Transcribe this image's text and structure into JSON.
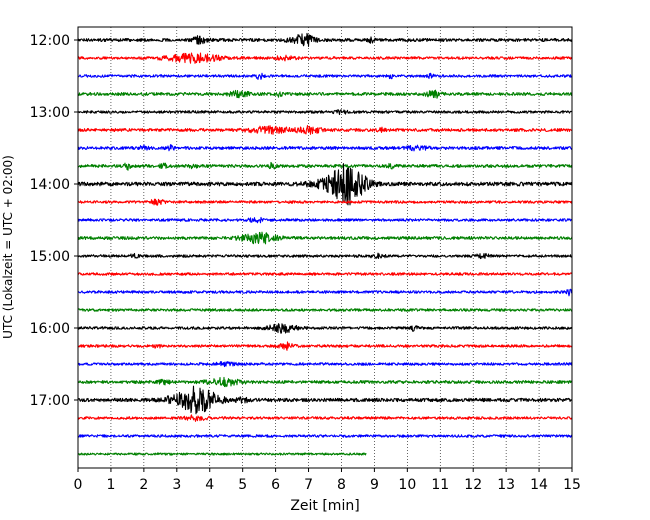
{
  "chart_data": {
    "type": "line",
    "title": "",
    "xlabel": "Zeit  [min]",
    "ylabel": "UTC (Lokalzeit = UTC + 02:00)",
    "xlim": [
      0,
      15
    ],
    "x_ticks": [
      0,
      1,
      2,
      3,
      4,
      5,
      6,
      7,
      8,
      9,
      10,
      11,
      12,
      13,
      14,
      15
    ],
    "y_tick_labels": [
      "12:00",
      "13:00",
      "14:00",
      "15:00",
      "16:00",
      "17:00"
    ],
    "grid": "vertical dotted",
    "trace_interval_minutes": 15,
    "colors": [
      "#000000",
      "#ff0000",
      "#0000ff",
      "#008000"
    ],
    "traces": [
      {
        "start": "12:00",
        "color": "#000000",
        "end_min": 15,
        "noise": 0.35,
        "events": [
          {
            "t": 3.7,
            "amp": 0.8,
            "dur": 0.2
          },
          {
            "t": 6.7,
            "amp": 0.9,
            "dur": 0.3
          },
          {
            "t": 7.0,
            "amp": 1.1,
            "dur": 0.2
          },
          {
            "t": 8.9,
            "amp": 0.5,
            "dur": 0.1
          }
        ]
      },
      {
        "start": "12:15",
        "color": "#ff0000",
        "end_min": 15,
        "noise": 0.3,
        "events": [
          {
            "t": 3.5,
            "amp": 1.0,
            "dur": 0.8
          },
          {
            "t": 6.3,
            "amp": 0.4,
            "dur": 0.3
          }
        ]
      },
      {
        "start": "12:30",
        "color": "#0000ff",
        "end_min": 15,
        "noise": 0.3,
        "events": [
          {
            "t": 5.5,
            "amp": 0.8,
            "dur": 0.1
          },
          {
            "t": 9.5,
            "amp": 0.4,
            "dur": 0.1
          },
          {
            "t": 10.7,
            "amp": 0.4,
            "dur": 0.1
          }
        ]
      },
      {
        "start": "12:45",
        "color": "#008000",
        "end_min": 15,
        "noise": 0.35,
        "events": [
          {
            "t": 4.9,
            "amp": 0.6,
            "dur": 0.3
          },
          {
            "t": 6.1,
            "amp": 0.5,
            "dur": 0.1
          },
          {
            "t": 10.8,
            "amp": 0.9,
            "dur": 0.2
          }
        ]
      },
      {
        "start": "13:00",
        "color": "#000000",
        "end_min": 15,
        "noise": 0.3,
        "events": [
          {
            "t": 8.0,
            "amp": 0.4,
            "dur": 0.2
          }
        ]
      },
      {
        "start": "13:15",
        "color": "#ff0000",
        "end_min": 15,
        "noise": 0.35,
        "events": [
          {
            "t": 5.8,
            "amp": 0.7,
            "dur": 0.6
          },
          {
            "t": 7.0,
            "amp": 0.7,
            "dur": 0.4
          },
          {
            "t": 9.2,
            "amp": 0.4,
            "dur": 0.1
          }
        ]
      },
      {
        "start": "13:30",
        "color": "#0000ff",
        "end_min": 15,
        "noise": 0.35,
        "events": [
          {
            "t": 2.0,
            "amp": 0.6,
            "dur": 0.1
          },
          {
            "t": 2.8,
            "amp": 0.6,
            "dur": 0.1
          },
          {
            "t": 10.3,
            "amp": 0.4,
            "dur": 0.3
          }
        ]
      },
      {
        "start": "13:45",
        "color": "#008000",
        "end_min": 15,
        "noise": 0.35,
        "events": [
          {
            "t": 1.5,
            "amp": 0.7,
            "dur": 0.1
          },
          {
            "t": 2.6,
            "amp": 0.6,
            "dur": 0.1
          },
          {
            "t": 3.5,
            "amp": 0.5,
            "dur": 0.1
          },
          {
            "t": 5.9,
            "amp": 0.6,
            "dur": 0.1
          },
          {
            "t": 9.5,
            "amp": 0.6,
            "dur": 0.1
          }
        ]
      },
      {
        "start": "14:00",
        "color": "#000000",
        "end_min": 15,
        "noise": 0.45,
        "events": [
          {
            "t": 8.2,
            "amp": 4.5,
            "dur": 0.5
          },
          {
            "t": 7.5,
            "amp": 0.6,
            "dur": 0.6
          }
        ]
      },
      {
        "start": "14:15",
        "color": "#ff0000",
        "end_min": 15,
        "noise": 0.3,
        "events": [
          {
            "t": 2.4,
            "amp": 0.5,
            "dur": 0.2
          }
        ]
      },
      {
        "start": "14:30",
        "color": "#0000ff",
        "end_min": 15,
        "noise": 0.3,
        "events": [
          {
            "t": 5.4,
            "amp": 0.6,
            "dur": 0.2
          }
        ]
      },
      {
        "start": "14:45",
        "color": "#008000",
        "end_min": 15,
        "noise": 0.35,
        "events": [
          {
            "t": 5.5,
            "amp": 1.3,
            "dur": 0.5
          }
        ]
      },
      {
        "start": "15:00",
        "color": "#000000",
        "end_min": 15,
        "noise": 0.3,
        "events": [
          {
            "t": 1.7,
            "amp": 0.6,
            "dur": 0.1
          },
          {
            "t": 9.1,
            "amp": 0.4,
            "dur": 0.2
          },
          {
            "t": 12.3,
            "amp": 0.4,
            "dur": 0.2
          }
        ]
      },
      {
        "start": "15:15",
        "color": "#ff0000",
        "end_min": 15,
        "noise": 0.3,
        "events": []
      },
      {
        "start": "15:30",
        "color": "#0000ff",
        "end_min": 15,
        "noise": 0.3,
        "events": [
          {
            "t": 14.95,
            "amp": 0.8,
            "dur": 0.1
          }
        ]
      },
      {
        "start": "15:45",
        "color": "#008000",
        "end_min": 15,
        "noise": 0.3,
        "events": []
      },
      {
        "start": "16:00",
        "color": "#000000",
        "end_min": 15,
        "noise": 0.3,
        "events": [
          {
            "t": 6.2,
            "amp": 1.0,
            "dur": 0.4
          },
          {
            "t": 10.2,
            "amp": 0.6,
            "dur": 0.1
          }
        ]
      },
      {
        "start": "16:15",
        "color": "#ff0000",
        "end_min": 15,
        "noise": 0.3,
        "events": [
          {
            "t": 2.4,
            "amp": 0.5,
            "dur": 0.1
          },
          {
            "t": 6.3,
            "amp": 0.8,
            "dur": 0.2
          }
        ]
      },
      {
        "start": "16:30",
        "color": "#0000ff",
        "end_min": 15,
        "noise": 0.3,
        "events": [
          {
            "t": 4.5,
            "amp": 0.4,
            "dur": 0.3
          }
        ]
      },
      {
        "start": "16:45",
        "color": "#008000",
        "end_min": 15,
        "noise": 0.35,
        "events": [
          {
            "t": 4.4,
            "amp": 0.8,
            "dur": 0.5
          },
          {
            "t": 2.6,
            "amp": 0.4,
            "dur": 0.2
          }
        ]
      },
      {
        "start": "17:00",
        "color": "#000000",
        "end_min": 15,
        "noise": 0.4,
        "events": [
          {
            "t": 3.6,
            "amp": 3.0,
            "dur": 0.6
          },
          {
            "t": 2.8,
            "amp": 0.4,
            "dur": 0.2
          },
          {
            "t": 5.0,
            "amp": 0.4,
            "dur": 0.2
          }
        ]
      },
      {
        "start": "17:15",
        "color": "#ff0000",
        "end_min": 15,
        "noise": 0.3,
        "events": [
          {
            "t": 3.6,
            "amp": 0.6,
            "dur": 0.3
          }
        ]
      },
      {
        "start": "17:30",
        "color": "#0000ff",
        "end_min": 15,
        "noise": 0.3,
        "events": []
      },
      {
        "start": "17:45",
        "color": "#008000",
        "end_min": 8.75,
        "noise": 0.25,
        "events": []
      }
    ]
  }
}
